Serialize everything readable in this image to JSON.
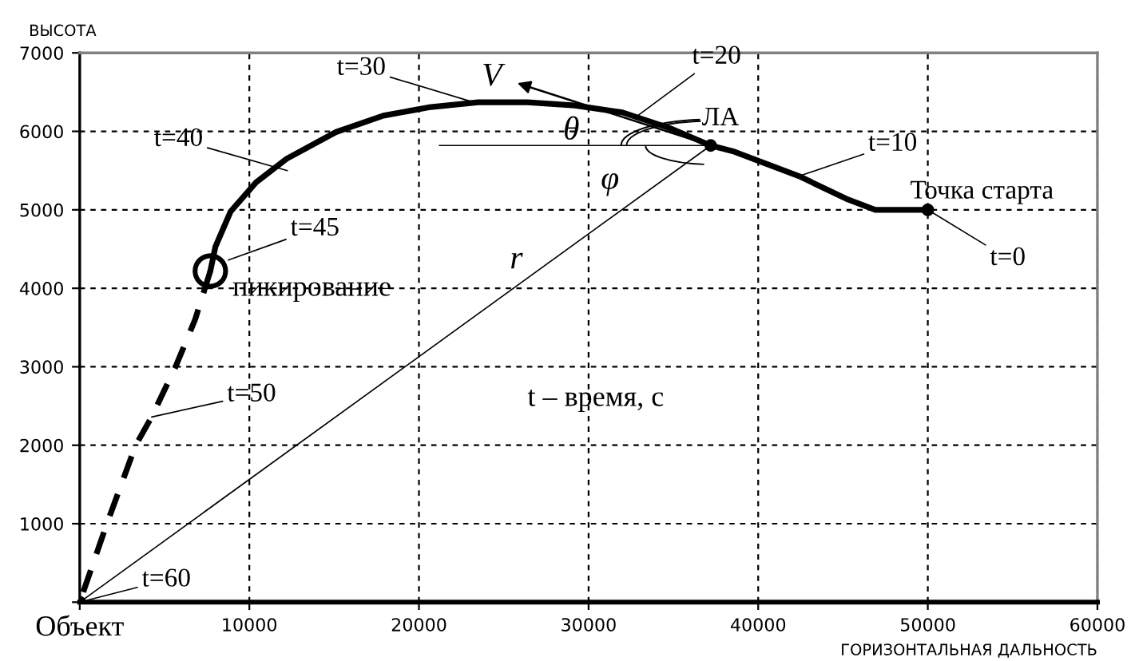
{
  "chart_data": {
    "type": "line",
    "xlabel": "ГОРИЗОНТАЛЬНАЯ ДАЛЬНОСТЬ",
    "ylabel": "ВЫСОТА",
    "xlim": [
      0,
      60000
    ],
    "ylim": [
      0,
      7000
    ],
    "xticks": [
      {
        "value": 0,
        "label": null
      },
      10000,
      20000,
      30000,
      40000,
      50000,
      60000
    ],
    "yticks": [
      {
        "value": 0,
        "label": null
      },
      1000,
      2000,
      3000,
      4000,
      5000,
      6000,
      7000
    ],
    "grid": true,
    "marker": "none",
    "series": [
      {
        "color": "#000000",
        "line_style": "solid",
        "x": [
          50000,
          46900,
          45200,
          42400,
          38600,
          37200,
          34800,
          32000,
          29200,
          26400,
          23500,
          20700,
          17900,
          15100,
          12200,
          10400,
          8900,
          8000,
          7700
        ],
        "values": [
          5000,
          5000,
          5140,
          5430,
          5740,
          5820,
          6040,
          6240,
          6330,
          6370,
          6370,
          6310,
          6200,
          5990,
          5650,
          5350,
          4980,
          4530,
          4220
        ]
      },
      {
        "color": "#000000",
        "line_style": "dashed",
        "x": [
          7700,
          6800,
          5650,
          4240,
          3300,
          1600,
          0
        ],
        "values": [
          4220,
          3600,
          3000,
          2360,
          2000,
          1000,
          0
        ]
      },
      {
        "color": "#000000",
        "line_style": "solid",
        "x": [
          0,
          37200
        ],
        "values": [
          0,
          5820
        ]
      },
      {
        "color": "#000000",
        "line_style": "solid",
        "x": [
          21200,
          37200
        ],
        "values": [
          5820,
          5820
        ]
      },
      {
        "type": "scatter",
        "color": "#000000",
        "marker": "circle",
        "x": [
          0,
          37200,
          50000
        ],
        "values": [
          0,
          5820,
          5000
        ]
      }
    ],
    "annotations": [
      {
        "text": "t=0",
        "x": 50000,
        "y": 5000
      },
      {
        "text": "t=10",
        "x": 42560,
        "y": 5440
      },
      {
        "text": "t=20",
        "x": 32960,
        "y": 6210
      },
      {
        "text": "t=30",
        "x": 23540,
        "y": 6350
      },
      {
        "text": "t=40",
        "x": 12240,
        "y": 5500
      },
      {
        "text": "t=45",
        "x": 8760,
        "y": 4360
      },
      {
        "text": "t=50",
        "x": 4240,
        "y": 2360
      },
      {
        "text": "t=60",
        "x": 0,
        "y": 0
      },
      {
        "text": "ЛА",
        "x": 37200,
        "y": 5820
      },
      {
        "text": "Точка старта",
        "x": 50000,
        "y": 5000
      },
      {
        "text": "пикирование",
        "x": 7700,
        "y": 4220
      },
      {
        "text": "Объект",
        "x": 0,
        "y": 0
      },
      "V",
      "θ",
      "φ",
      "r",
      "t – время, с"
    ]
  }
}
